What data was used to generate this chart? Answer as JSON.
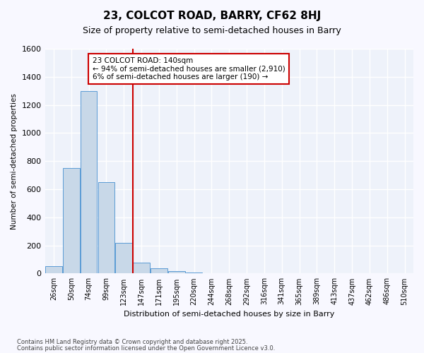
{
  "title": "23, COLCOT ROAD, BARRY, CF62 8HJ",
  "subtitle": "Size of property relative to semi-detached houses in Barry",
  "xlabel": "Distribution of semi-detached houses by size in Barry",
  "ylabel": "Number of semi-detached properties",
  "bin_labels": [
    "26sqm",
    "50sqm",
    "74sqm",
    "99sqm",
    "123sqm",
    "147sqm",
    "171sqm",
    "195sqm",
    "220sqm",
    "244sqm",
    "268sqm",
    "292sqm",
    "316sqm",
    "341sqm",
    "365sqm",
    "389sqm",
    "413sqm",
    "437sqm",
    "462sqm",
    "486sqm",
    "510sqm"
  ],
  "bin_values": [
    50,
    750,
    1300,
    650,
    220,
    80,
    35,
    15,
    5,
    2,
    0,
    0,
    0,
    0,
    0,
    0,
    0,
    0,
    0,
    0,
    0
  ],
  "bar_color": "#c8d8e8",
  "bar_edge_color": "#5b9bd5",
  "vline_color": "#cc0000",
  "annotation_title": "23 COLCOT ROAD: 140sqm",
  "annotation_line1": "← 94% of semi-detached houses are smaller (2,910)",
  "annotation_line2": "6% of semi-detached houses are larger (190) →",
  "annotation_box_color": "#cc0000",
  "ylim": [
    0,
    1600
  ],
  "yticks": [
    0,
    200,
    400,
    600,
    800,
    1000,
    1200,
    1400,
    1600
  ],
  "background_color": "#eef2fa",
  "grid_color": "#ffffff",
  "footer1": "Contains HM Land Registry data © Crown copyright and database right 2025.",
  "footer2": "Contains public sector information licensed under the Open Government Licence v3.0."
}
